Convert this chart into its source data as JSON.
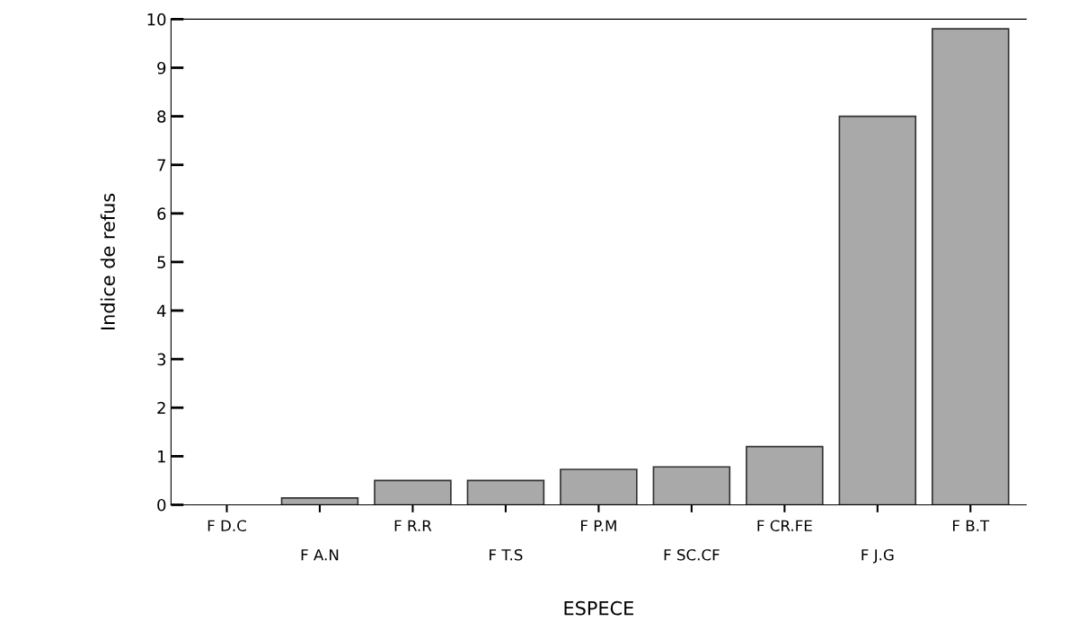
{
  "chart_data": {
    "type": "bar",
    "xlabel": "ESPECE",
    "ylabel": "Indice de refus",
    "categories": [
      "F D.C",
      "F A.N",
      "F R.R",
      "F T.S",
      "F P.M",
      "F SC.CF",
      "F CR.FE",
      "F J.G",
      "F B.T"
    ],
    "values": [
      0,
      0.14,
      0.5,
      0.5,
      0.73,
      0.78,
      1.2,
      8.0,
      9.8
    ],
    "color": "#a9a9a9",
    "ylim": [
      0,
      10
    ],
    "yticks": [
      0,
      1,
      2,
      3,
      4,
      5,
      6,
      7,
      8,
      9,
      10
    ],
    "grid": false
  }
}
